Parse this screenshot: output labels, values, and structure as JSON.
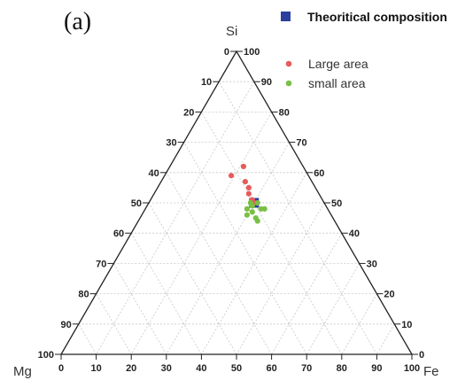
{
  "panel_label": "(a)",
  "chart_data": {
    "type": "scatter",
    "subtype": "ternary",
    "corners": {
      "top": "Si",
      "bottom_left": "Mg",
      "bottom_right": "Fe"
    },
    "ticks": {
      "left_edge": [
        "0",
        "10",
        "20",
        "30",
        "40",
        "50",
        "60",
        "70",
        "80",
        "90",
        "100"
      ],
      "right_edge": [
        "100",
        "90",
        "80",
        "70",
        "60",
        "50",
        "40",
        "30",
        "20",
        "10",
        "0"
      ],
      "bottom_edge": [
        "0",
        "10",
        "20",
        "30",
        "40",
        "50",
        "60",
        "70",
        "80",
        "90",
        "100"
      ]
    },
    "grid": true,
    "legend_position": "top-right",
    "colors": {
      "theoretical": "#2b3f9e",
      "large_area": "#e85a5a",
      "small_area": "#79c043",
      "grid": "#c7c7c7",
      "axis": "#222222"
    },
    "series": [
      {
        "name": "Theoritical composition",
        "marker": "square",
        "points": [
          {
            "si": 50,
            "fe": 30
          }
        ]
      },
      {
        "name": "Large area",
        "marker": "circle",
        "points": [
          {
            "si": 51,
            "fe": 29
          },
          {
            "si": 50,
            "fe": 30
          },
          {
            "si": 53,
            "fe": 27
          },
          {
            "si": 55,
            "fe": 26
          },
          {
            "si": 57,
            "fe": 24
          },
          {
            "si": 59,
            "fe": 19
          },
          {
            "si": 62,
            "fe": 21
          }
        ]
      },
      {
        "name": "small area",
        "marker": "circle",
        "points": [
          {
            "si": 44,
            "fe": 34
          },
          {
            "si": 45,
            "fe": 33
          },
          {
            "si": 46,
            "fe": 30
          },
          {
            "si": 47,
            "fe": 31
          },
          {
            "si": 48,
            "fe": 33
          },
          {
            "si": 48,
            "fe": 29
          },
          {
            "si": 48,
            "fe": 34
          },
          {
            "si": 49,
            "fe": 30
          },
          {
            "si": 50,
            "fe": 29
          },
          {
            "si": 50,
            "fe": 31
          }
        ]
      }
    ]
  }
}
